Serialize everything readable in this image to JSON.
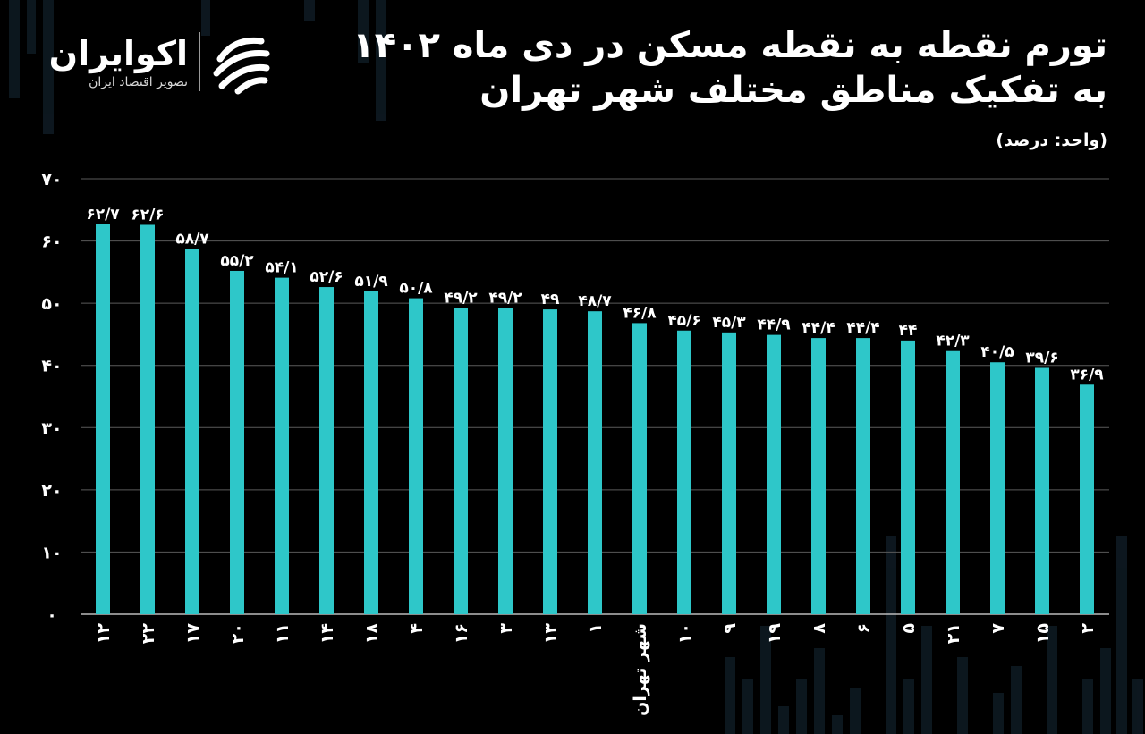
{
  "header": {
    "title_line1": "تورم نقطه به نقطه مسکن در دی ماه ۱۴۰۲",
    "title_line2": "به تفکیک مناطق مختلف شهر تهران",
    "unit": "(واحد: درصد)"
  },
  "logo": {
    "name": "اکوایران",
    "subtitle": "تصویر اقتصاد ایران",
    "icon": "ekoiran-logo-mark"
  },
  "colors": {
    "background": "#000000",
    "bar": "#2ec7c9",
    "grid": "#5a5a5a",
    "text": "#ffffff"
  },
  "chart_data": {
    "type": "bar",
    "title": "تورم نقطه به نقطه مسکن در دی ماه ۱۴۰۲",
    "subtitle": "به تفکیک مناطق مختلف شهر تهران",
    "xlabel": "",
    "ylabel": "",
    "ylim": [
      0,
      70
    ],
    "yticks": [
      0,
      10,
      20,
      30,
      40,
      50,
      60,
      70
    ],
    "ytick_labels": [
      "۰",
      "۱۰",
      "۲۰",
      "۳۰",
      "۴۰",
      "۵۰",
      "۶۰",
      "۷۰"
    ],
    "grid": true,
    "legend": "none",
    "categories": [
      "۱۲",
      "۲۲",
      "۱۷",
      "۲۰",
      "۱۱",
      "۱۴",
      "۱۸",
      "۴",
      "۱۶",
      "۳",
      "۱۳",
      "۱",
      "شهر تهران",
      "۱۰",
      "۹",
      "۱۹",
      "۸",
      "۶",
      "۵",
      "۲۱",
      "۷",
      "۱۵",
      "۲"
    ],
    "values": [
      62.7,
      62.6,
      58.7,
      55.2,
      54.1,
      52.6,
      51.9,
      50.8,
      49.2,
      49.2,
      49,
      48.7,
      46.8,
      45.6,
      45.3,
      44.9,
      44.4,
      44.4,
      44,
      42.3,
      40.5,
      39.6,
      36.9
    ],
    "data_labels": [
      "۶۲/۷",
      "۶۲/۶",
      "۵۸/۷",
      "۵۵/۲",
      "۵۴/۱",
      "۵۲/۶",
      "۵۱/۹",
      "۵۰/۸",
      "۴۹/۲",
      "۴۹/۲",
      "۴۹",
      "۴۸/۷",
      "۴۶/۸",
      "۴۵/۶",
      "۴۵/۳",
      "۴۴/۹",
      "۴۴/۴",
      "۴۴/۴",
      "۴۴",
      "۴۲/۳",
      "۴۰/۵",
      "۳۹/۶",
      "۳۶/۹"
    ]
  }
}
